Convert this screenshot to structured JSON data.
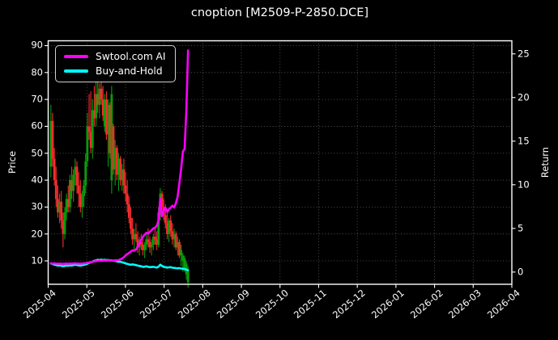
{
  "chart_data": {
    "type": "candlestick",
    "title": "cnoption [M2509-P-2850.DCE]",
    "ylabel_left": "Price",
    "ylabel_right": "Return",
    "x_tick_labels": [
      "2025-04",
      "2025-05",
      "2025-06",
      "2025-07",
      "2025-08",
      "2025-09",
      "2025-10",
      "2025-11",
      "2025-12",
      "2026-01",
      "2026-02",
      "2026-03",
      "2026-04"
    ],
    "y_left_ticks": [
      10,
      20,
      30,
      40,
      50,
      60,
      70,
      80,
      90
    ],
    "y_right_ticks": [
      0,
      5,
      10,
      15,
      20,
      25
    ],
    "y_left_range": [
      1.3,
      91.8
    ],
    "y_right_range": [
      -1.4,
      26.5
    ],
    "grid": true,
    "legend": {
      "position": "upper-left",
      "items": [
        {
          "label": "Swtool.com AI",
          "color": "#ff00ff"
        },
        {
          "label": "Buy-and-Hold",
          "color": "#00ffff"
        }
      ]
    },
    "colors": {
      "background": "#000000",
      "text": "#ffffff",
      "grid": "#5f5f5f",
      "spine": "#ffffff",
      "up": "#0a9b0a",
      "down": "#f52d2d",
      "ai_line": "#ff00ff",
      "bh_line": "#00ffff"
    },
    "candles": {
      "x_extent_months": [
        0.07,
        3.62
      ],
      "ohlc": [
        [
          45,
          68,
          41,
          62
        ],
        [
          62,
          65,
          45,
          48
        ],
        [
          48,
          52,
          38,
          40
        ],
        [
          40,
          45,
          30,
          33
        ],
        [
          33,
          38,
          26,
          28
        ],
        [
          28,
          35,
          24,
          32
        ],
        [
          32,
          36,
          22,
          25
        ],
        [
          25,
          28,
          15,
          20
        ],
        [
          20,
          30,
          18,
          28
        ],
        [
          28,
          35,
          25,
          33
        ],
        [
          33,
          38,
          28,
          30
        ],
        [
          30,
          42,
          28,
          40
        ],
        [
          40,
          45,
          33,
          36
        ],
        [
          36,
          44,
          32,
          42
        ],
        [
          42,
          48,
          38,
          45
        ],
        [
          45,
          47,
          35,
          38
        ],
        [
          38,
          43,
          30,
          35
        ],
        [
          35,
          40,
          28,
          30
        ],
        [
          30,
          36,
          26,
          34
        ],
        [
          34,
          40,
          30,
          38
        ],
        [
          38,
          50,
          35,
          47
        ],
        [
          47,
          65,
          45,
          60
        ],
        [
          60,
          72,
          55,
          58
        ],
        [
          58,
          73,
          50,
          52
        ],
        [
          52,
          70,
          48,
          66
        ],
        [
          66,
          75,
          60,
          63
        ],
        [
          63,
          77,
          60,
          72
        ],
        [
          72,
          78,
          65,
          68
        ],
        [
          68,
          76,
          63,
          74
        ],
        [
          74,
          77,
          68,
          70
        ],
        [
          70,
          75,
          62,
          64
        ],
        [
          60,
          72,
          58,
          70
        ],
        [
          70,
          73,
          55,
          57
        ],
        [
          57,
          70,
          45,
          68
        ],
        [
          68,
          69,
          48,
          50
        ],
        [
          40,
          75,
          35,
          72
        ],
        [
          60,
          61,
          42,
          44
        ],
        [
          44,
          55,
          38,
          52
        ],
        [
          52,
          53,
          40,
          42
        ],
        [
          42,
          50,
          36,
          48
        ],
        [
          48,
          49,
          38,
          40
        ],
        [
          40,
          46,
          36,
          44
        ],
        [
          44,
          48,
          35,
          38
        ],
        [
          38,
          43,
          32,
          35
        ],
        [
          35,
          40,
          28,
          31
        ],
        [
          31,
          34,
          24,
          26
        ],
        [
          26,
          30,
          20,
          22
        ],
        [
          22,
          26,
          16,
          18
        ],
        [
          18,
          22,
          14,
          20
        ],
        [
          20,
          24,
          17,
          18
        ],
        [
          18,
          21,
          13,
          15
        ],
        [
          15,
          19,
          12,
          17
        ],
        [
          17,
          20,
          14,
          16
        ],
        [
          16,
          18,
          12,
          14
        ],
        [
          14,
          17,
          11,
          16
        ],
        [
          16,
          20,
          14,
          18
        ],
        [
          18,
          22,
          15,
          17
        ],
        [
          17,
          19,
          13,
          15
        ],
        [
          15,
          18,
          12,
          16
        ],
        [
          16,
          20,
          14,
          19
        ],
        [
          19,
          22,
          16,
          18
        ],
        [
          18,
          21,
          14,
          16
        ],
        [
          16,
          30,
          15,
          28
        ],
        [
          28,
          37,
          25,
          35
        ],
        [
          35,
          36,
          28,
          30
        ],
        [
          30,
          33,
          25,
          27
        ],
        [
          27,
          31,
          22,
          24
        ],
        [
          24,
          28,
          18,
          20
        ],
        [
          20,
          26,
          17,
          25
        ],
        [
          25,
          27,
          19,
          21
        ],
        [
          21,
          24,
          16,
          18
        ],
        [
          18,
          22,
          15,
          20
        ],
        [
          20,
          21,
          14,
          15
        ],
        [
          15,
          19,
          12,
          17
        ],
        [
          17,
          18,
          11,
          12
        ],
        [
          12,
          16,
          8,
          14
        ],
        [
          10,
          13,
          6,
          12
        ],
        [
          7,
          12,
          6,
          11
        ],
        [
          5,
          10,
          3,
          9
        ],
        [
          2,
          8,
          0,
          6
        ]
      ]
    },
    "series": [
      {
        "name": "Swtool.com AI",
        "axis": "right",
        "color": "#ff00ff",
        "values": [
          1.0,
          0.98,
          1.0,
          0.97,
          0.95,
          0.97,
          0.95,
          0.93,
          0.95,
          0.97,
          0.96,
          0.98,
          0.97,
          0.99,
          1.0,
          0.98,
          0.97,
          0.96,
          0.98,
          1.0,
          1.02,
          1.06,
          1.1,
          1.14,
          1.18,
          1.22,
          1.26,
          1.28,
          1.3,
          1.28,
          1.3,
          1.32,
          1.3,
          1.34,
          1.3,
          1.33,
          1.31,
          1.35,
          1.34,
          1.38,
          1.45,
          1.55,
          1.7,
          1.9,
          2.05,
          2.2,
          2.35,
          2.5,
          2.45,
          2.6,
          2.9,
          3.3,
          3.7,
          4.05,
          4.3,
          4.5,
          4.4,
          4.6,
          4.8,
          5.0,
          5.1,
          5.3,
          5.9,
          8.4,
          6.4,
          7.0,
          7.4,
          6.9,
          7.2,
          7.4,
          7.6,
          7.4,
          7.9,
          8.6,
          10.2,
          11.8,
          13.8,
          14.1,
          18.5,
          25.4
        ]
      },
      {
        "name": "Buy-and-Hold",
        "axis": "right",
        "color": "#00ffff",
        "values": [
          1.0,
          0.92,
          0.85,
          0.8,
          0.74,
          0.77,
          0.72,
          0.66,
          0.7,
          0.74,
          0.72,
          0.77,
          0.74,
          0.8,
          0.84,
          0.8,
          0.77,
          0.73,
          0.78,
          0.82,
          0.88,
          0.95,
          1.05,
          1.12,
          1.2,
          1.28,
          1.33,
          1.4,
          1.38,
          1.42,
          1.38,
          1.4,
          1.36,
          1.39,
          1.32,
          1.35,
          1.28,
          1.3,
          1.22,
          1.18,
          1.18,
          1.12,
          1.06,
          1.0,
          0.94,
          0.88,
          0.84,
          0.88,
          0.84,
          0.8,
          0.74,
          0.7,
          0.65,
          0.6,
          0.62,
          0.65,
          0.6,
          0.56,
          0.58,
          0.6,
          0.55,
          0.52,
          0.62,
          0.85,
          0.7,
          0.6,
          0.56,
          0.52,
          0.54,
          0.56,
          0.5,
          0.48,
          0.45,
          0.43,
          0.45,
          0.4,
          0.38,
          0.35,
          0.28,
          0.2
        ]
      }
    ]
  }
}
